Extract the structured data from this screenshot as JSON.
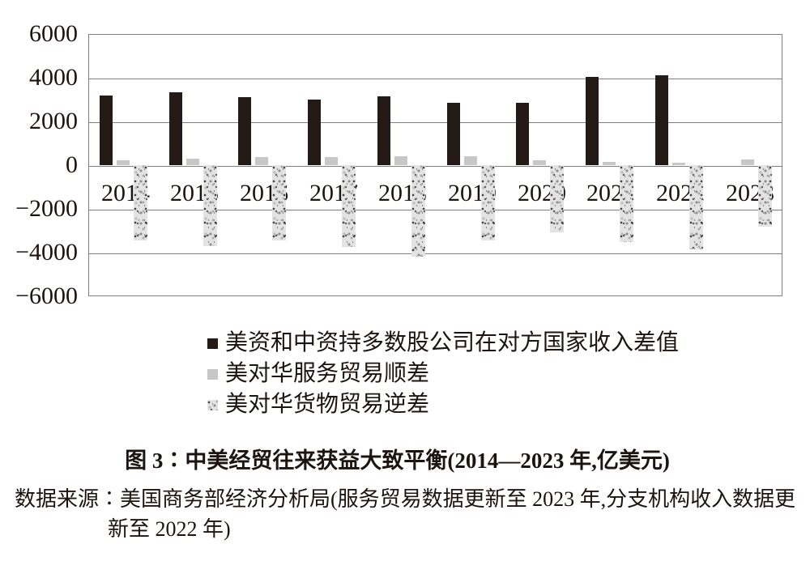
{
  "figure": {
    "caption": "图 3∶中美经贸往来获益大致平衡(2014—2023 年,亿美元)",
    "source_line1": "数据来源∶美国商务部经济分析局(服务贸易数据更新至 2023 年,分支机构收入数据更",
    "source_line2": "新至 2022 年)"
  },
  "chart_data": {
    "type": "bar",
    "title": "图 3∶中美经贸往来获益大致平衡(2014—2023 年,亿美元)",
    "unit": "亿美元",
    "categories": [
      "2014",
      "2015",
      "2016",
      "2017",
      "2018",
      "2019",
      "2020",
      "2021",
      "2022",
      "2023"
    ],
    "series": [
      {
        "name": "美资和中资持多数股公司在对方国家收入差值",
        "style": "black",
        "color": "#241a16",
        "values": [
          3180,
          3340,
          3120,
          3000,
          3150,
          2840,
          2870,
          4040,
          4100,
          null
        ]
      },
      {
        "name": "美对华服务贸易顺差",
        "style": "gray",
        "color": "#c7c7c7",
        "values": [
          230,
          300,
          380,
          385,
          390,
          400,
          240,
          150,
          100,
          250
        ]
      },
      {
        "name": "美对华货物贸易逆差",
        "style": "speckled",
        "color": "#dcdcdc",
        "values": [
          -3430,
          -3700,
          -3450,
          -3750,
          -4180,
          -3430,
          -3080,
          -3500,
          -3850,
          -2800
        ]
      }
    ],
    "ylim": [
      -6000,
      6000
    ],
    "ytick_interval": 2000,
    "ytick_labels": [
      "6000",
      "4000",
      "2000",
      "0",
      "−2000",
      "−4000",
      "−6000"
    ],
    "grid": true,
    "legend_position": "below-left"
  }
}
